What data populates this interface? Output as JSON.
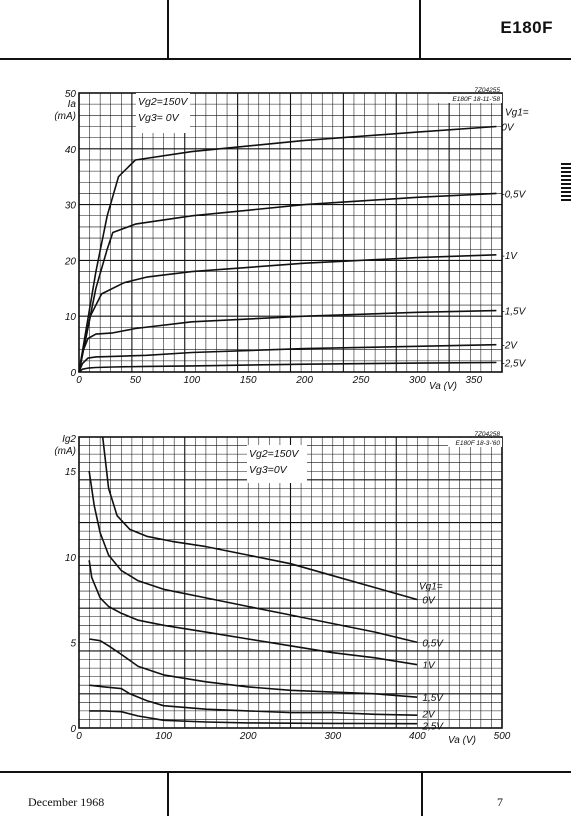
{
  "header": {
    "tube_type": "E180F"
  },
  "footer": {
    "date": "December 1968",
    "page": "7"
  },
  "chart_data": [
    {
      "type": "line",
      "ref": "7Z04255",
      "stamp": "E180F 18-11-'58",
      "conditions": [
        "Vg2=150V",
        "Vg3= 0V"
      ],
      "ylabel_lines": [
        "Ia",
        "(mA)"
      ],
      "xlabel": "Va (V)",
      "legend_title": "Vg1=",
      "xlim": [
        0,
        375
      ],
      "ylim": [
        0,
        50
      ],
      "x_ticks": [
        0,
        50,
        100,
        150,
        200,
        250,
        300,
        350
      ],
      "y_ticks": [
        0,
        10,
        20,
        30,
        40,
        50
      ],
      "grid": true,
      "series": [
        {
          "name": "0V",
          "x": [
            0,
            5,
            15,
            25,
            35,
            50,
            100,
            200,
            300,
            370
          ],
          "y": [
            0,
            6,
            18,
            28,
            35,
            38,
            39.5,
            41.5,
            43,
            44
          ]
        },
        {
          "name": "-0,5V",
          "x": [
            0,
            5,
            15,
            25,
            30,
            50,
            100,
            200,
            300,
            370
          ],
          "y": [
            0,
            5,
            15,
            22,
            25,
            26.5,
            28,
            30,
            31.3,
            32
          ]
        },
        {
          "name": "-1V",
          "x": [
            0,
            5,
            10,
            20,
            40,
            60,
            100,
            200,
            300,
            370
          ],
          "y": [
            0,
            5,
            10,
            14,
            16,
            17,
            18,
            19.5,
            20.5,
            21
          ]
        },
        {
          "name": "-1,5V",
          "x": [
            0,
            3,
            8,
            15,
            30,
            50,
            100,
            200,
            300,
            370
          ],
          "y": [
            0,
            3.5,
            6,
            6.8,
            7,
            7.8,
            9,
            10,
            10.7,
            11
          ]
        },
        {
          "name": "-2V",
          "x": [
            0,
            3,
            8,
            15,
            30,
            60,
            100,
            200,
            300,
            370
          ],
          "y": [
            0,
            1.5,
            2.5,
            2.7,
            2.8,
            3,
            3.5,
            4.2,
            4.6,
            4.9
          ]
        },
        {
          "name": "-2,5V",
          "x": [
            0,
            3,
            8,
            15,
            30,
            60,
            100,
            200,
            300,
            370
          ],
          "y": [
            0,
            0.5,
            0.7,
            0.8,
            0.9,
            1,
            1.1,
            1.4,
            1.6,
            1.7
          ]
        }
      ]
    },
    {
      "type": "line",
      "ref": "7Z04258",
      "stamp": "E180F 18-3-'60",
      "conditions": [
        "Vg2=150V",
        "Vg3=0V"
      ],
      "ylabel_lines": [
        "Ig2",
        "(mA)"
      ],
      "xlabel": "Va (V)",
      "legend_title": "Vg1=",
      "xlim": [
        0,
        500
      ],
      "ylim": [
        0,
        17
      ],
      "x_ticks": [
        0,
        100,
        200,
        300,
        400,
        500
      ],
      "y_ticks": [
        0,
        5,
        10,
        15
      ],
      "grid": true,
      "series": [
        {
          "name": "0V",
          "x": [
            28,
            35,
            45,
            60,
            80,
            110,
            150,
            200,
            250,
            300,
            350,
            400
          ],
          "y": [
            17,
            14,
            12.4,
            11.6,
            11.2,
            10.9,
            10.6,
            10.1,
            9.6,
            8.9,
            8.2,
            7.5
          ]
        },
        {
          "name": "0,5V",
          "x": [
            12,
            18,
            25,
            35,
            50,
            70,
            100,
            150,
            200,
            250,
            300,
            350,
            400
          ],
          "y": [
            15,
            13,
            11.4,
            10.1,
            9.2,
            8.6,
            8.1,
            7.6,
            7.1,
            6.6,
            6.1,
            5.6,
            5
          ]
        },
        {
          "name": "1V",
          "x": [
            12,
            15,
            20,
            25,
            35,
            50,
            70,
            100,
            150,
            200,
            250,
            300,
            350,
            400
          ],
          "y": [
            9.8,
            8.8,
            8.2,
            7.6,
            7.1,
            6.7,
            6.3,
            6,
            5.6,
            5.2,
            4.8,
            4.4,
            4.1,
            3.7
          ]
        },
        {
          "name": "1,5V",
          "x": [
            12,
            25,
            35,
            50,
            70,
            100,
            150,
            200,
            250,
            300,
            350,
            400
          ],
          "y": [
            5.2,
            5.1,
            4.8,
            4.3,
            3.6,
            3.1,
            2.7,
            2.4,
            2.2,
            2.1,
            2,
            1.8
          ]
        },
        {
          "name": "2V",
          "x": [
            12,
            30,
            50,
            60,
            80,
            100,
            150,
            200,
            250,
            300,
            350,
            400
          ],
          "y": [
            2.5,
            2.4,
            2.3,
            2,
            1.6,
            1.3,
            1.1,
            1,
            0.9,
            0.9,
            0.8,
            0.75
          ]
        },
        {
          "name": "2,5V",
          "x": [
            12,
            30,
            50,
            70,
            100,
            150,
            200,
            250,
            300,
            350,
            400
          ],
          "y": [
            1,
            1,
            0.95,
            0.7,
            0.45,
            0.35,
            0.3,
            0.28,
            0.27,
            0.26,
            0.25
          ]
        }
      ]
    }
  ]
}
